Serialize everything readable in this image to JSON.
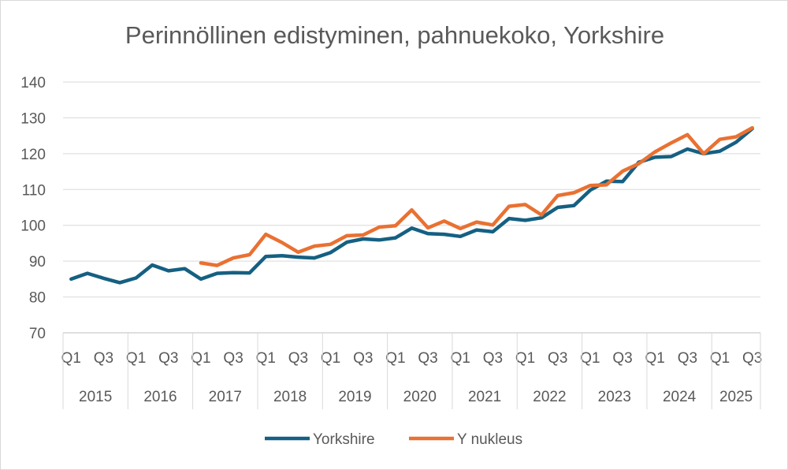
{
  "chart_data": {
    "type": "line",
    "title": "Perinnöllinen edistyminen, pahnuekoko, Yorkshire",
    "xlabel": "",
    "ylabel": "",
    "ylim": [
      70,
      140
    ],
    "yticks": [
      70,
      80,
      90,
      100,
      110,
      120,
      130,
      140
    ],
    "grid": true,
    "legend_position": "bottom",
    "categories": [
      "2015 Q1",
      "2015 Q2",
      "2015 Q3",
      "2015 Q4",
      "2016 Q1",
      "2016 Q2",
      "2016 Q3",
      "2016 Q4",
      "2017 Q1",
      "2017 Q2",
      "2017 Q3",
      "2017 Q4",
      "2018 Q1",
      "2018 Q2",
      "2018 Q3",
      "2018 Q4",
      "2019 Q1",
      "2019 Q2",
      "2019 Q3",
      "2019 Q4",
      "2020 Q1",
      "2020 Q2",
      "2020 Q3",
      "2020 Q4",
      "2021 Q1",
      "2021 Q2",
      "2021 Q3",
      "2021 Q4",
      "2022 Q1",
      "2022 Q2",
      "2022 Q3",
      "2022 Q4",
      "2023 Q1",
      "2023 Q2",
      "2023 Q3",
      "2023 Q4",
      "2024 Q1",
      "2024 Q2",
      "2024 Q3",
      "2024 Q4",
      "2025 Q1",
      "2025 Q2",
      "2025 Q3"
    ],
    "quarter_labels": [
      "Q1",
      "Q3"
    ],
    "years": [
      {
        "label": "2015",
        "quarters": 4
      },
      {
        "label": "2016",
        "quarters": 4
      },
      {
        "label": "2017",
        "quarters": 4
      },
      {
        "label": "2018",
        "quarters": 4
      },
      {
        "label": "2019",
        "quarters": 4
      },
      {
        "label": "2020",
        "quarters": 4
      },
      {
        "label": "2021",
        "quarters": 4
      },
      {
        "label": "2022",
        "quarters": 4
      },
      {
        "label": "2023",
        "quarters": 4
      },
      {
        "label": "2024",
        "quarters": 4
      },
      {
        "label": "2025",
        "quarters": 3
      }
    ],
    "series": [
      {
        "name": "Yorkshire",
        "color": "#156082",
        "values": [
          85.0,
          86.6,
          85.2,
          84.0,
          85.3,
          88.9,
          87.3,
          87.9,
          85.0,
          86.6,
          86.8,
          86.7,
          91.3,
          91.5,
          91.1,
          90.9,
          92.4,
          95.3,
          96.2,
          95.9,
          96.5,
          99.2,
          97.7,
          97.5,
          96.9,
          98.7,
          98.2,
          101.9,
          101.4,
          102.1,
          105.0,
          105.5,
          109.8,
          112.3,
          112.2,
          117.6,
          119.0,
          119.2,
          121.3,
          120.0,
          120.7,
          123.2,
          127.0
        ]
      },
      {
        "name": "Y nukleus",
        "color": "#E97132",
        "values": [
          null,
          null,
          null,
          null,
          null,
          null,
          null,
          null,
          89.5,
          88.8,
          90.9,
          91.8,
          97.5,
          95.2,
          92.5,
          94.2,
          94.7,
          97.1,
          97.3,
          99.5,
          99.9,
          104.3,
          99.3,
          101.2,
          99.1,
          100.9,
          100.1,
          105.3,
          105.8,
          102.9,
          108.3,
          109.1,
          111.1,
          111.3,
          115.1,
          117.2,
          120.5,
          123.0,
          125.3,
          120.0,
          124.0,
          124.7,
          127.2
        ]
      }
    ]
  }
}
